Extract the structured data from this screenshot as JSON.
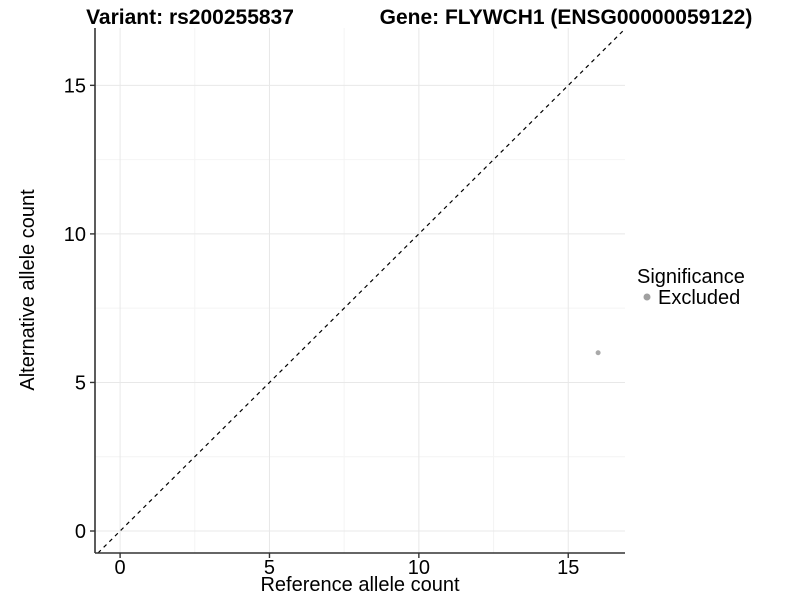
{
  "chart_data": {
    "type": "scatter",
    "title_left": "Variant: rs200255837",
    "title_right": "Gene: FLYWCH1 (ENSG00000059122)",
    "xlabel": "Reference allele count",
    "ylabel": "Alternative allele count",
    "xlim": [
      -0.84,
      16.9
    ],
    "ylim": [
      -0.74,
      16.93
    ],
    "x_major_ticks": [
      0,
      5,
      10,
      15
    ],
    "y_major_ticks": [
      0,
      5,
      10,
      15
    ],
    "x_minor_ticks": [
      2.5,
      7.5,
      12.5
    ],
    "y_minor_ticks": [
      2.5,
      7.5,
      12.5
    ],
    "grid": "major+minor",
    "identity_line": {
      "slope": 1,
      "intercept": 0,
      "style": "dashed",
      "color": "#000000"
    },
    "series": [
      {
        "name": "Excluded",
        "marker_color": "#A9A9A9",
        "marker_radius": 2.5,
        "points": [
          [
            16,
            6
          ]
        ]
      }
    ],
    "legend": {
      "title": "Significance",
      "position": "right",
      "entries": [
        {
          "label": "Excluded",
          "marker_color": "#A0A0A0",
          "marker_radius": 3.5
        }
      ]
    },
    "colors": {
      "panel_background": "#FFFFFF",
      "grid_major": "#E8E8E8",
      "grid_minor": "#F4F4F4",
      "axis_line": "#333333",
      "tick_mark": "#333333",
      "text": "#000000"
    }
  }
}
